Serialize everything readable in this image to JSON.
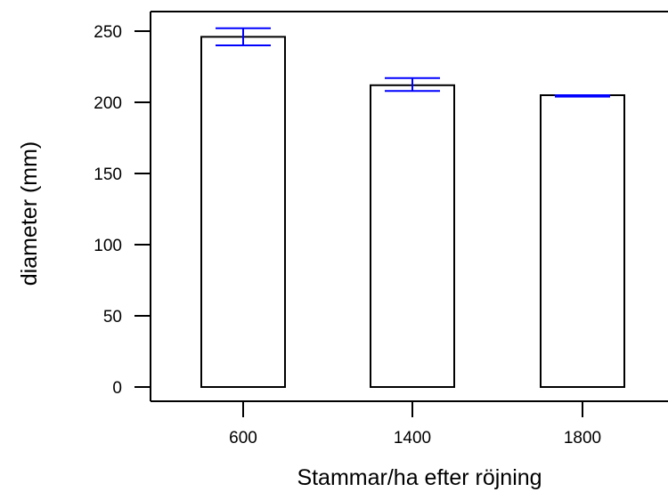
{
  "chart_data": {
    "type": "bar",
    "title": "",
    "xlabel": "Stammar/ha efter röjning",
    "ylabel": "diameter (mm)",
    "categories": [
      "600",
      "1400",
      "1800"
    ],
    "values": [
      246,
      212,
      205
    ],
    "error_bars": [
      {
        "lower": 240,
        "upper": 252
      },
      {
        "lower": 208,
        "upper": 217
      },
      {
        "lower": 204,
        "upper": 205
      }
    ],
    "ylim": [
      0,
      250
    ],
    "yticks": [
      0,
      50,
      100,
      150,
      200,
      250
    ],
    "grid": false,
    "legend": "none",
    "colors": {
      "bar_fill": "#ffffff",
      "bar_stroke": "#000000",
      "error_bar": "#0000ff",
      "axis": "#000000"
    }
  }
}
